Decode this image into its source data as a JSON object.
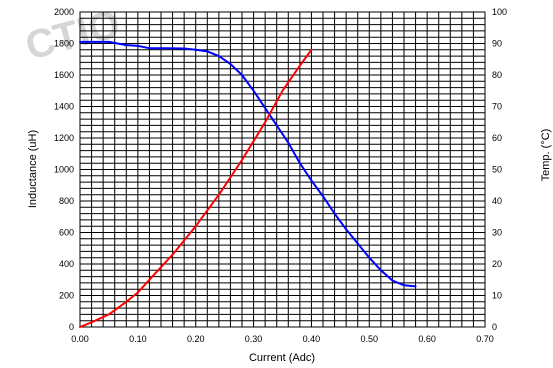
{
  "chart_data": {
    "type": "line",
    "xlabel": "Current (Adc)",
    "ylabel": "Inductance (uH)",
    "y2label": "Temp. (°C)",
    "watermark": "CTIO",
    "xlim": [
      0,
      0.7
    ],
    "ylim": [
      0,
      2000
    ],
    "y2lim": [
      0,
      100
    ],
    "x_ticks": [
      "0.00",
      "0.10",
      "0.20",
      "0.30",
      "0.40",
      "0.50",
      "0.60",
      "0.70"
    ],
    "y_ticks": [
      "0",
      "200",
      "400",
      "600",
      "800",
      "1000",
      "1200",
      "1400",
      "1600",
      "1800",
      "2000"
    ],
    "y2_ticks": [
      "0",
      "10",
      "20",
      "30",
      "40",
      "50",
      "60",
      "70",
      "80",
      "90",
      "100"
    ],
    "grid": true,
    "series": [
      {
        "axis": "left",
        "color": "#0000ff",
        "x": [
          0.0,
          0.05,
          0.08,
          0.1,
          0.12,
          0.15,
          0.18,
          0.2,
          0.22,
          0.24,
          0.26,
          0.28,
          0.3,
          0.32,
          0.34,
          0.36,
          0.38,
          0.4,
          0.42,
          0.44,
          0.46,
          0.48,
          0.5,
          0.52,
          0.54,
          0.56,
          0.58
        ],
        "y": [
          1810,
          1810,
          1790,
          1785,
          1770,
          1770,
          1768,
          1760,
          1750,
          1720,
          1670,
          1600,
          1500,
          1390,
          1280,
          1170,
          1040,
          930,
          830,
          720,
          620,
          530,
          440,
          360,
          295,
          265,
          258
        ]
      },
      {
        "axis": "right",
        "color": "#ff0000",
        "x": [
          0.0,
          0.02,
          0.05,
          0.08,
          0.1,
          0.13,
          0.16,
          0.2,
          0.24,
          0.28,
          0.32,
          0.35,
          0.38,
          0.4
        ],
        "y": [
          0,
          1.5,
          4,
          8,
          11,
          17,
          23,
          32,
          42,
          53,
          65,
          75,
          83,
          88
        ]
      }
    ]
  }
}
